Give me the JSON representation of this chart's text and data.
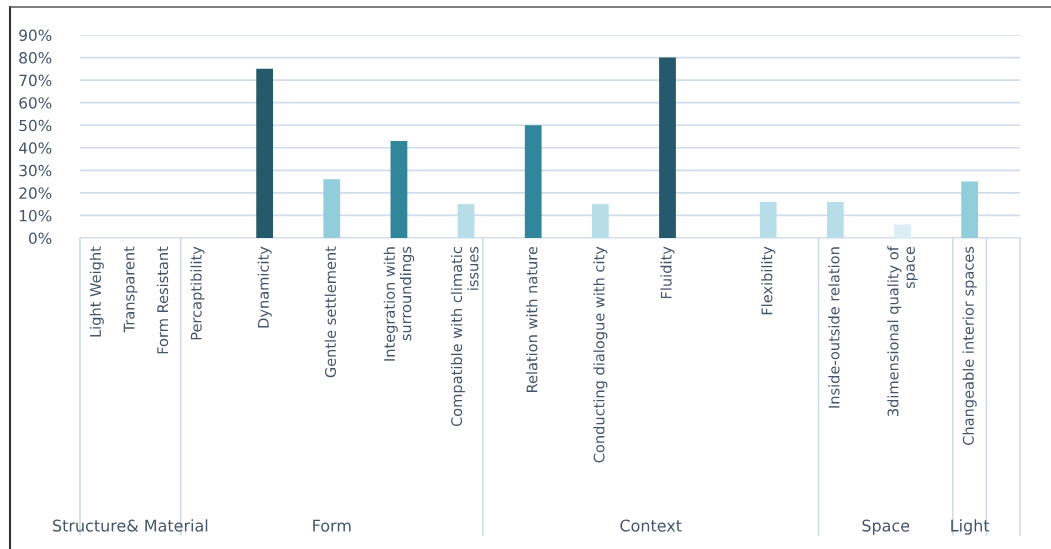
{
  "chart_data": {
    "type": "bar",
    "categories": [
      "Light Weight",
      "Transparent",
      "Form Resistant",
      "Percaptibility",
      null,
      "Dynamicity",
      null,
      "Gentle settlement",
      null,
      "Integration with\nsurroundings",
      null,
      "Compatible with climatic\nissues",
      null,
      "Relation with nature",
      null,
      "Conducting dialogue with city",
      null,
      "Fluidity",
      null,
      null,
      "Flexibility",
      null,
      "Inside-outside relation",
      null,
      "3dimensional quality of\nspace",
      null,
      "Changeable interior spaces",
      null
    ],
    "values": [
      null,
      null,
      null,
      null,
      null,
      75,
      null,
      26,
      null,
      43,
      null,
      15,
      null,
      50,
      null,
      15,
      null,
      80,
      null,
      null,
      16,
      null,
      16,
      null,
      6,
      null,
      25,
      null
    ],
    "colors": [
      "#b7dee8",
      "#b7dee8",
      "#b7dee8",
      "#b7dee8",
      "#b7dee8",
      "#245a6b",
      "#b7dee8",
      "#92cddc",
      "#b7dee8",
      "#31869b",
      "#b7dee8",
      "#b7dee8",
      "#b7dee8",
      "#31869b",
      "#b7dee8",
      "#b7dee8",
      "#b7dee8",
      "#245a6b",
      "#b7dee8",
      "#b7dee8",
      "#b7dee8",
      "#b7dee8",
      "#b7dee8",
      "#b7dee8",
      "#daeef3",
      "#b7dee8",
      "#92cddc",
      "#b7dee8"
    ],
    "ylim": [
      0,
      90
    ],
    "yticks": [
      {
        "value": 0,
        "label": "0%"
      },
      {
        "value": 10,
        "label": "10%"
      },
      {
        "value": 20,
        "label": "20%"
      },
      {
        "value": 30,
        "label": "30%"
      },
      {
        "value": 40,
        "label": "40%"
      },
      {
        "value": 50,
        "label": "50%"
      },
      {
        "value": 60,
        "label": "60%"
      },
      {
        "value": 70,
        "label": "70%"
      },
      {
        "value": 80,
        "label": "80%"
      },
      {
        "value": 90,
        "label": "90%"
      }
    ],
    "grid": "y",
    "annotations": [
      "Structure& Material",
      "Form",
      "Context",
      "Space",
      "Light"
    ]
  }
}
